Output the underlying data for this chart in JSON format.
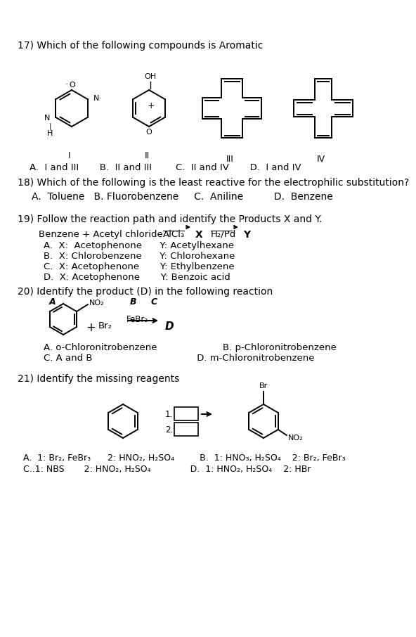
{
  "bg_color": "#ffffff",
  "title": "17) Which of the following compounds is Aromatic",
  "q18": "18) Which of the following is the least reactive for the electrophilic substitution?",
  "q18_opts": "    A.  Toluene   B. Fluorobenzene     C.  Aniline          D.  Benzene",
  "q19": "19) Follow the reaction path and identify the Products X and Y.",
  "q19_opts": [
    "    A.  X:  Acetophenone      Y: Acetylhexane",
    "    B.  X: Chlorobenzene      Y: Chlorohexane",
    "    C.  X: Acetophenone       Y: Ethylbenzene",
    "    D.  X: Acetophenone       Y: Benzoic acid"
  ],
  "q20": "20) Identify the product (D) in the following reaction",
  "q20_opts": [
    "    A. o-Chloronitrobenzene                      B. p-Chloronitrobenzene",
    "    C. A and B                                   D. m-Chloronitrobenzene"
  ],
  "q21": "21) Identify the missing reagents",
  "q21_opts": [
    "  A.  1: Br₂, FeBr₃      2: HNO₂, H₂SO₄         B.  1: HNO₃, H₂SO₄    2: Br₂, FeBr₃",
    "  C..1: NBS       2: HNO₂, H₂SO₄              D.  1: HNO₂, H₂SO₄    2: HBr"
  ],
  "answer_row17": "    A.  I and III       B.  II and III        C.  II and IV       D.  I and IV"
}
